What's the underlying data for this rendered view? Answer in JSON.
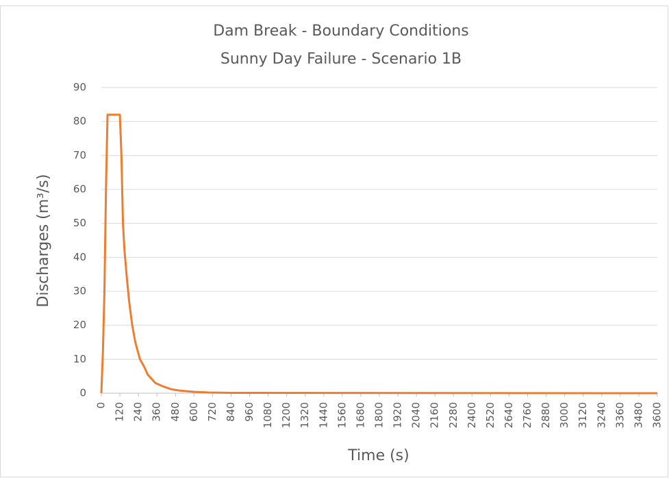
{
  "chart_data": {
    "type": "line",
    "title": "Dam Break - Boundary Conditions",
    "subtitle": "Sunny Day Failure - Scenario 1B",
    "x_label": "Time (s)",
    "y_label": "Discharges (m³/s)",
    "x": [
      0,
      10,
      20,
      30,
      40,
      120,
      130,
      140,
      150,
      165,
      180,
      200,
      220,
      250,
      275,
      300,
      350,
      400,
      450,
      500,
      600,
      700,
      840,
      3600
    ],
    "series": [
      {
        "name": "Discharge",
        "color": "#ed7d31",
        "values": [
          0,
          12,
          30,
          60,
          82,
          82,
          70,
          50,
          42,
          34,
          27,
          20,
          15,
          10,
          8,
          5.5,
          3,
          2,
          1.2,
          0.8,
          0.4,
          0.2,
          0.1,
          0
        ]
      }
    ],
    "xlim": [
      0,
      3600
    ],
    "xticks": [
      0,
      120,
      240,
      360,
      480,
      600,
      720,
      840,
      960,
      1080,
      1200,
      1320,
      1440,
      1560,
      1680,
      1800,
      1920,
      2040,
      2160,
      2280,
      2400,
      2520,
      2640,
      2760,
      2880,
      3000,
      3120,
      3240,
      3360,
      3480,
      3600
    ],
    "ylim": [
      0,
      90
    ],
    "yticks": [
      0,
      10,
      20,
      30,
      40,
      50,
      60,
      70,
      80,
      90
    ],
    "grid": true
  }
}
